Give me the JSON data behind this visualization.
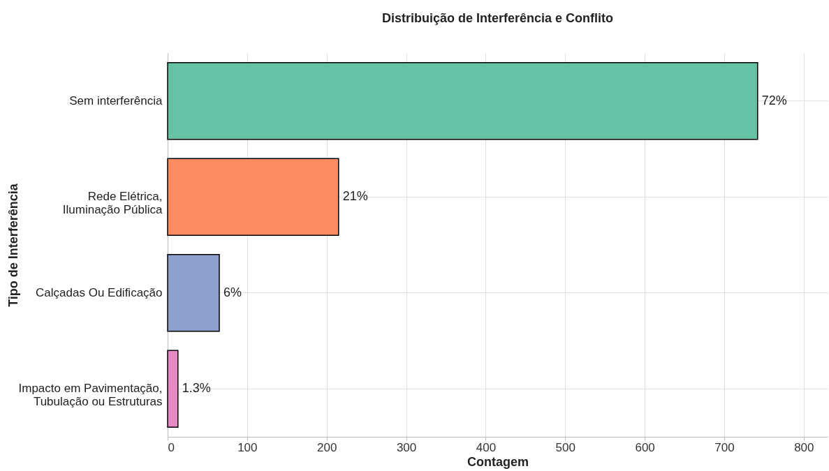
{
  "chart_data": {
    "type": "bar",
    "orientation": "horizontal",
    "title": "Distribuição de Interferência e Conflito",
    "xlabel": "Contagem",
    "ylabel": "Tipo de Interferência",
    "categories": [
      "Sem interferência",
      "Rede Elétrica,\nIluminação Pública",
      "Calçadas Ou Edificação",
      "Impacto em Pavimentação,\nTubulação ou Estruturas"
    ],
    "values": [
      742,
      215,
      65,
      13
    ],
    "colors": [
      "#66c2a5",
      "#fc8d62",
      "#8da0cb",
      "#e78ac3"
    ],
    "annotations": [
      {
        "text": "72%",
        "x": 742,
        "y": "Sem interferência"
      },
      {
        "text": "21%",
        "x": 215,
        "y": "Rede Elétrica,\nIluminação Pública"
      },
      {
        "text": "6%",
        "x": 65,
        "y": "Calçadas Ou Edificação"
      },
      {
        "text": "1.3%",
        "x": 13,
        "y": "Impacto em Pavimentação,\nTubulação ou Estruturas"
      }
    ],
    "xlim": [
      0,
      830
    ],
    "xticks": [
      0,
      100,
      200,
      300,
      400,
      500,
      600,
      700,
      800
    ],
    "grid": true
  }
}
